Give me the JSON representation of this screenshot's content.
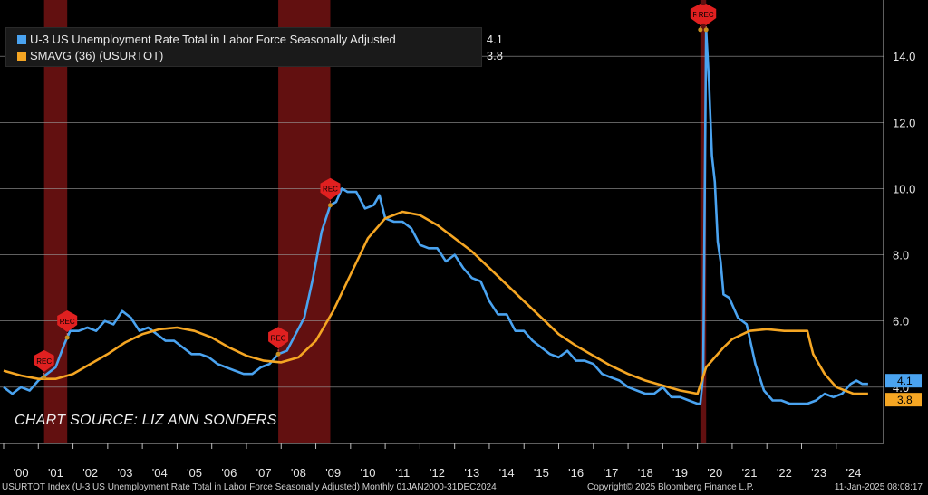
{
  "legend": {
    "series1_label": "U-3 US Unemployment Rate Total in Labor Force Seasonally Adjusted",
    "series1_value": "4.1",
    "series2_label": "SMAVG (36) (USURTOT)",
    "series2_value": "3.8"
  },
  "source_note": "CHART SOURCE: LIZ ANN SONDERS",
  "footer": {
    "left": "USURTOT Index (U-3 US Unemployment Rate Total in Labor Force Seasonally Adjusted)  Monthly 01JAN2000-31DEC2024",
    "center": "Copyright© 2025 Bloomberg Finance L.P.",
    "right": "11-Jan-2025 08:08:17"
  },
  "chart_data": {
    "type": "line",
    "x_range": [
      "2000-01",
      "2024-12"
    ],
    "ylim": [
      2.3,
      15.7
    ],
    "y_ticks": [
      "4.0",
      "6.0",
      "8.0",
      "10.0",
      "12.0",
      "14.0"
    ],
    "x_ticks": [
      "'00",
      "'01",
      "'02",
      "'03",
      "'04",
      "'05",
      "'06",
      "'07",
      "'08",
      "'09",
      "'10",
      "'11",
      "'12",
      "'13",
      "'14",
      "'15",
      "'16",
      "'17",
      "'18",
      "'19",
      "'20",
      "'21",
      "'22",
      "'23",
      "'24"
    ],
    "grid": "horizontal",
    "colors": {
      "series1": "#4aa3f0",
      "series2": "#f5a623",
      "recession": "#7a1414",
      "rec_marker": "#e02020"
    },
    "recessions": [
      {
        "start": "2001-03",
        "end": "2001-11"
      },
      {
        "start": "2007-12",
        "end": "2009-06"
      },
      {
        "start": "2020-02",
        "end": "2020-04"
      }
    ],
    "rec_markers": [
      {
        "label": "REC",
        "date": "2001-03",
        "value": 4.3
      },
      {
        "label": "REC",
        "date": "2001-11",
        "value": 5.5
      },
      {
        "label": "REC",
        "date": "2007-12",
        "value": 5.0
      },
      {
        "label": "REC",
        "date": "2009-06",
        "value": 9.5
      },
      {
        "label": "REC",
        "date": "2020-02",
        "value": 14.8
      },
      {
        "label": "REC",
        "date": "2020-04",
        "value": 14.8
      }
    ],
    "series": [
      {
        "name": "U-3 US Unemployment Rate Total in Labor Force Seasonally Adjusted",
        "last_value": "4.1",
        "points": [
          [
            "2000-01",
            4.0
          ],
          [
            "2000-04",
            3.8
          ],
          [
            "2000-07",
            4.0
          ],
          [
            "2000-10",
            3.9
          ],
          [
            "2001-01",
            4.2
          ],
          [
            "2001-04",
            4.4
          ],
          [
            "2001-07",
            4.6
          ],
          [
            "2001-10",
            5.3
          ],
          [
            "2001-12",
            5.7
          ],
          [
            "2002-03",
            5.7
          ],
          [
            "2002-06",
            5.8
          ],
          [
            "2002-09",
            5.7
          ],
          [
            "2002-12",
            6.0
          ],
          [
            "2003-03",
            5.9
          ],
          [
            "2003-06",
            6.3
          ],
          [
            "2003-09",
            6.1
          ],
          [
            "2003-12",
            5.7
          ],
          [
            "2004-03",
            5.8
          ],
          [
            "2004-06",
            5.6
          ],
          [
            "2004-09",
            5.4
          ],
          [
            "2004-12",
            5.4
          ],
          [
            "2005-03",
            5.2
          ],
          [
            "2005-06",
            5.0
          ],
          [
            "2005-09",
            5.0
          ],
          [
            "2005-12",
            4.9
          ],
          [
            "2006-03",
            4.7
          ],
          [
            "2006-06",
            4.6
          ],
          [
            "2006-09",
            4.5
          ],
          [
            "2006-12",
            4.4
          ],
          [
            "2007-03",
            4.4
          ],
          [
            "2007-06",
            4.6
          ],
          [
            "2007-09",
            4.7
          ],
          [
            "2007-12",
            5.0
          ],
          [
            "2008-03",
            5.1
          ],
          [
            "2008-06",
            5.6
          ],
          [
            "2008-09",
            6.1
          ],
          [
            "2008-12",
            7.3
          ],
          [
            "2009-03",
            8.7
          ],
          [
            "2009-06",
            9.5
          ],
          [
            "2009-08",
            9.6
          ],
          [
            "2009-10",
            10.0
          ],
          [
            "2009-12",
            9.9
          ],
          [
            "2010-03",
            9.9
          ],
          [
            "2010-06",
            9.4
          ],
          [
            "2010-09",
            9.5
          ],
          [
            "2010-11",
            9.8
          ],
          [
            "2011-01",
            9.1
          ],
          [
            "2011-04",
            9.0
          ],
          [
            "2011-07",
            9.0
          ],
          [
            "2011-10",
            8.8
          ],
          [
            "2012-01",
            8.3
          ],
          [
            "2012-04",
            8.2
          ],
          [
            "2012-07",
            8.2
          ],
          [
            "2012-10",
            7.8
          ],
          [
            "2013-01",
            8.0
          ],
          [
            "2013-04",
            7.6
          ],
          [
            "2013-07",
            7.3
          ],
          [
            "2013-10",
            7.2
          ],
          [
            "2014-01",
            6.6
          ],
          [
            "2014-04",
            6.2
          ],
          [
            "2014-07",
            6.2
          ],
          [
            "2014-10",
            5.7
          ],
          [
            "2015-01",
            5.7
          ],
          [
            "2015-04",
            5.4
          ],
          [
            "2015-07",
            5.2
          ],
          [
            "2015-10",
            5.0
          ],
          [
            "2016-01",
            4.9
          ],
          [
            "2016-04",
            5.1
          ],
          [
            "2016-07",
            4.8
          ],
          [
            "2016-10",
            4.8
          ],
          [
            "2017-01",
            4.7
          ],
          [
            "2017-04",
            4.4
          ],
          [
            "2017-07",
            4.3
          ],
          [
            "2017-10",
            4.2
          ],
          [
            "2018-01",
            4.0
          ],
          [
            "2018-04",
            3.9
          ],
          [
            "2018-07",
            3.8
          ],
          [
            "2018-10",
            3.8
          ],
          [
            "2019-01",
            4.0
          ],
          [
            "2019-04",
            3.7
          ],
          [
            "2019-07",
            3.7
          ],
          [
            "2019-10",
            3.6
          ],
          [
            "2020-01",
            3.5
          ],
          [
            "2020-02",
            3.5
          ],
          [
            "2020-03",
            4.4
          ],
          [
            "2020-04",
            14.8
          ],
          [
            "2020-05",
            13.2
          ],
          [
            "2020-06",
            11.0
          ],
          [
            "2020-07",
            10.2
          ],
          [
            "2020-08",
            8.4
          ],
          [
            "2020-09",
            7.8
          ],
          [
            "2020-10",
            6.8
          ],
          [
            "2020-12",
            6.7
          ],
          [
            "2021-03",
            6.1
          ],
          [
            "2021-06",
            5.9
          ],
          [
            "2021-09",
            4.7
          ],
          [
            "2021-12",
            3.9
          ],
          [
            "2022-03",
            3.6
          ],
          [
            "2022-06",
            3.6
          ],
          [
            "2022-09",
            3.5
          ],
          [
            "2022-12",
            3.5
          ],
          [
            "2023-03",
            3.5
          ],
          [
            "2023-06",
            3.6
          ],
          [
            "2023-09",
            3.8
          ],
          [
            "2023-12",
            3.7
          ],
          [
            "2024-03",
            3.8
          ],
          [
            "2024-06",
            4.1
          ],
          [
            "2024-08",
            4.2
          ],
          [
            "2024-10",
            4.1
          ],
          [
            "2024-12",
            4.1
          ]
        ]
      },
      {
        "name": "SMAVG (36) (USURTOT)",
        "last_value": "3.8",
        "points": [
          [
            "2000-01",
            4.5
          ],
          [
            "2000-07",
            4.35
          ],
          [
            "2001-01",
            4.25
          ],
          [
            "2001-07",
            4.25
          ],
          [
            "2002-01",
            4.4
          ],
          [
            "2002-07",
            4.7
          ],
          [
            "2003-01",
            5.0
          ],
          [
            "2003-07",
            5.35
          ],
          [
            "2004-01",
            5.6
          ],
          [
            "2004-07",
            5.75
          ],
          [
            "2005-01",
            5.8
          ],
          [
            "2005-07",
            5.7
          ],
          [
            "2006-01",
            5.5
          ],
          [
            "2006-07",
            5.2
          ],
          [
            "2007-01",
            4.95
          ],
          [
            "2007-07",
            4.8
          ],
          [
            "2008-01",
            4.75
          ],
          [
            "2008-07",
            4.9
          ],
          [
            "2009-01",
            5.4
          ],
          [
            "2009-07",
            6.3
          ],
          [
            "2010-01",
            7.4
          ],
          [
            "2010-07",
            8.5
          ],
          [
            "2011-01",
            9.1
          ],
          [
            "2011-07",
            9.3
          ],
          [
            "2012-01",
            9.2
          ],
          [
            "2012-07",
            8.9
          ],
          [
            "2013-01",
            8.5
          ],
          [
            "2013-07",
            8.1
          ],
          [
            "2014-01",
            7.6
          ],
          [
            "2014-07",
            7.1
          ],
          [
            "2015-01",
            6.6
          ],
          [
            "2015-07",
            6.1
          ],
          [
            "2016-01",
            5.6
          ],
          [
            "2016-07",
            5.25
          ],
          [
            "2017-01",
            4.95
          ],
          [
            "2017-07",
            4.65
          ],
          [
            "2018-01",
            4.4
          ],
          [
            "2018-07",
            4.2
          ],
          [
            "2019-01",
            4.05
          ],
          [
            "2019-07",
            3.9
          ],
          [
            "2020-01",
            3.8
          ],
          [
            "2020-04",
            4.6
          ],
          [
            "2020-07",
            4.9
          ],
          [
            "2020-10",
            5.2
          ],
          [
            "2021-01",
            5.45
          ],
          [
            "2021-07",
            5.7
          ],
          [
            "2022-01",
            5.75
          ],
          [
            "2022-07",
            5.7
          ],
          [
            "2023-01",
            5.7
          ],
          [
            "2023-03",
            5.7
          ],
          [
            "2023-05",
            5.0
          ],
          [
            "2023-09",
            4.4
          ],
          [
            "2024-01",
            4.0
          ],
          [
            "2024-07",
            3.8
          ],
          [
            "2024-12",
            3.8
          ]
        ]
      }
    ]
  }
}
